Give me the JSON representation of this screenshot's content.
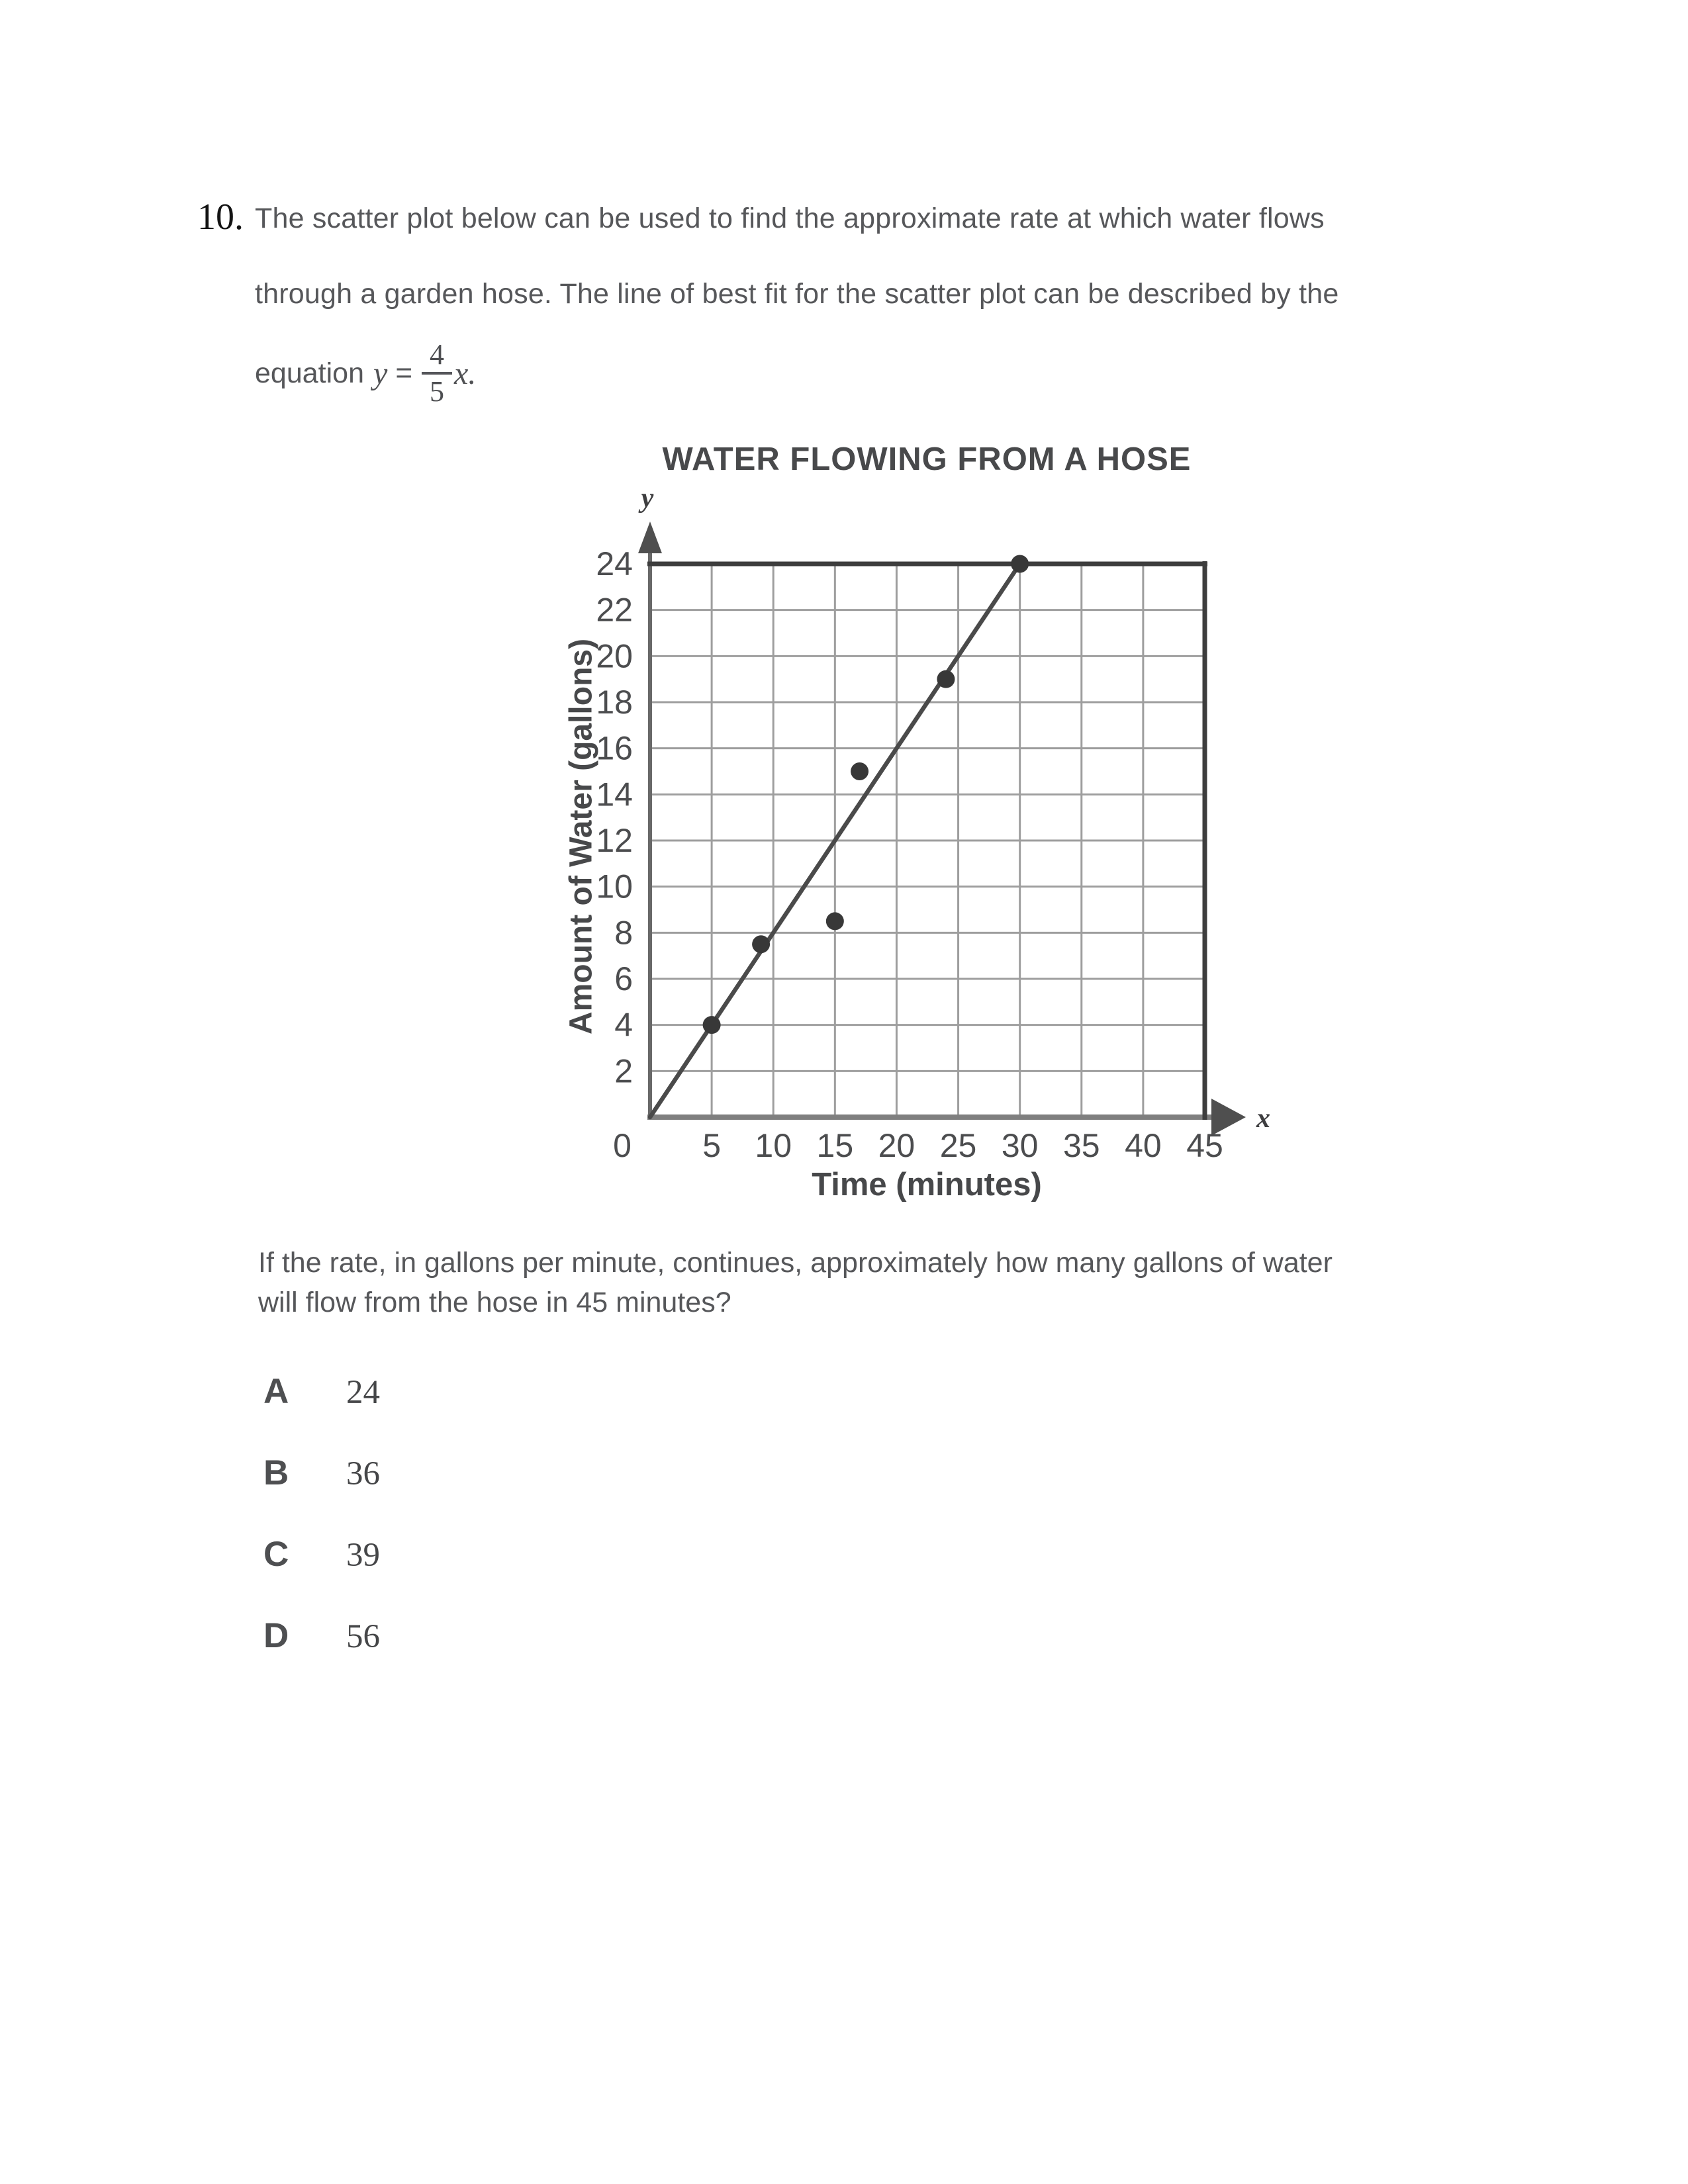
{
  "question": {
    "number": "10.",
    "line1": "The scatter plot below can be used to find the approximate rate at which water flows",
    "line2": "through a garden hose. The line of best fit for the scatter plot can be described by the",
    "equation_prefix": "equation",
    "equation_lhs": "y",
    "equation_equals": "=",
    "fraction_numerator": "4",
    "fraction_denominator": "5",
    "equation_suffix": "x."
  },
  "chart_data": {
    "type": "scatter",
    "title": "WATER FLOWING FROM A HOSE",
    "xlabel": "Time (minutes)",
    "ylabel": "Amount of Water (gallons)",
    "x_axis_letter": "x",
    "y_axis_letter": "y",
    "xlim": [
      0,
      45
    ],
    "ylim": [
      0,
      24
    ],
    "x_ticks": [
      0,
      5,
      10,
      15,
      20,
      25,
      30,
      35,
      40,
      45
    ],
    "y_ticks": [
      2,
      4,
      6,
      8,
      10,
      12,
      14,
      16,
      18,
      20,
      22,
      24
    ],
    "points": [
      [
        5,
        4
      ],
      [
        9,
        7.5
      ],
      [
        15,
        8.5
      ],
      [
        17,
        15
      ],
      [
        24,
        19
      ],
      [
        30,
        24
      ]
    ],
    "best_fit_line": {
      "equation": "y = 4/5 x",
      "from": [
        0,
        0
      ],
      "to": [
        30,
        24
      ]
    },
    "grid": true,
    "legend": "none",
    "colors": {
      "grid": "#9e9e9e",
      "border": "#3d3d3d",
      "y_axis": "#696969",
      "x_axis": "#7f7f7f",
      "arrow": "#4f4f4f",
      "line": "#4a4a4a",
      "point": "#383838",
      "tick_text": "#4c4d4f"
    }
  },
  "prompt": {
    "line1": "If the rate, in gallons per minute, continues, approximately how many gallons of water",
    "line2": "will flow from the hose in 45 minutes?"
  },
  "choices": [
    {
      "letter": "A",
      "value": "24"
    },
    {
      "letter": "B",
      "value": "36"
    },
    {
      "letter": "C",
      "value": "39"
    },
    {
      "letter": "D",
      "value": "56"
    }
  ]
}
